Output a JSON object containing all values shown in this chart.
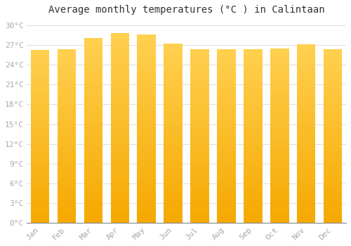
{
  "title": "Average monthly temperatures (°C ) in Calintaan",
  "months": [
    "Jan",
    "Feb",
    "Mar",
    "Apr",
    "May",
    "Jun",
    "Jul",
    "Aug",
    "Sep",
    "Oct",
    "Nov",
    "Dec"
  ],
  "temperatures": [
    26.2,
    26.3,
    28.0,
    28.8,
    28.6,
    27.2,
    26.3,
    26.3,
    26.3,
    26.5,
    27.1,
    26.3
  ],
  "bar_color_bottom": "#F5A800",
  "bar_color_top": "#FFD040",
  "background_color": "#FFFFFF",
  "grid_color": "#DDDDDD",
  "ytick_labels": [
    "0°C",
    "3°C",
    "6°C",
    "9°C",
    "12°C",
    "15°C",
    "18°C",
    "21°C",
    "24°C",
    "27°C",
    "30°C"
  ],
  "ytick_values": [
    0,
    3,
    6,
    9,
    12,
    15,
    18,
    21,
    24,
    27,
    30
  ],
  "ylim": [
    0,
    31
  ],
  "title_fontsize": 10,
  "tick_fontsize": 8,
  "tick_color": "#AAAAAA",
  "label_font": "monospace",
  "bar_width": 0.7
}
